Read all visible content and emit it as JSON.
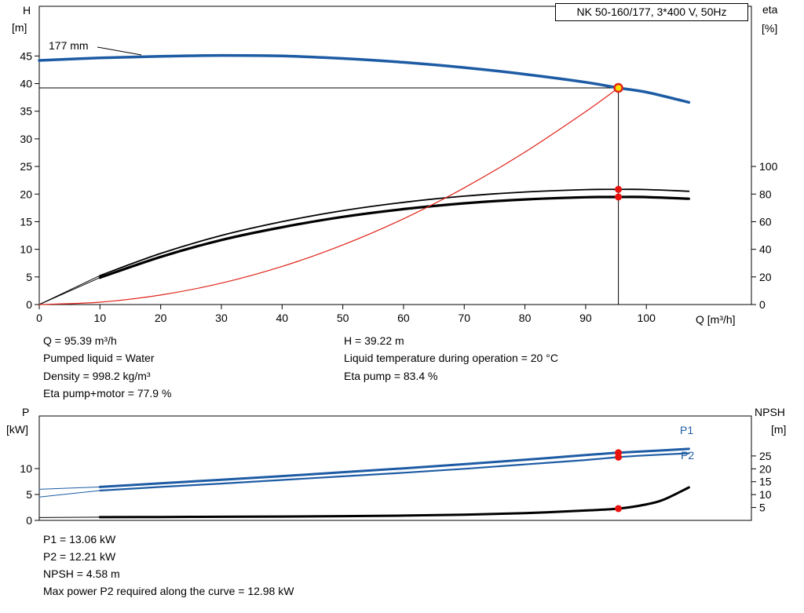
{
  "window": {
    "title_box": "NK 50-160/177, 3*400 V, 50Hz"
  },
  "impeller_label": "177 mm",
  "axis_labels": {
    "h": "H",
    "h_unit": "[m]",
    "eta": "eta",
    "eta_unit": "[%]",
    "q": "Q [m³/h]",
    "p": "P",
    "p_unit": "[kW]",
    "npsh": "NPSH",
    "npsh_unit": "[m]"
  },
  "series_labels": {
    "p1": "P1",
    "p2": "P2"
  },
  "operating_point": {
    "Q_m3h": 95.39,
    "H_m": 39.22,
    "eta_pump_pct": 83.4,
    "eta_pump_motor_pct": 77.9,
    "P1_kW": 13.06,
    "P2_kW": 12.21,
    "NPSH_m": 4.58,
    "max_P2_kW": 12.98
  },
  "info_top": {
    "left": [
      "Q = 95.39 m³/h",
      "Pumped liquid = Water",
      "Density = 998.2 kg/m³",
      "Eta pump+motor = 77.9 %"
    ],
    "right": [
      "H = 39.22 m",
      "Liquid temperature during operation = 20 °C",
      "Eta pump = 83.4 %"
    ]
  },
  "info_bottom": [
    "P1 = 13.06 kW",
    "P2 = 12.21 kW",
    "NPSH = 4.58 m",
    "Max power P2 required along the curve = 12.98 kW"
  ],
  "colors": {
    "curve_blue": "#1d5ba4",
    "curve_red": "#e02318",
    "curve_black": "#000000",
    "op_fill": "#ffe100",
    "op_stroke": "#e02318",
    "dot_red": "#e8130c"
  },
  "chart_data": [
    {
      "name": "hq-eta-chart",
      "type": "line",
      "title": "NK 50-160/177, 3*400 V, 50Hz",
      "x_axis": {
        "label": "Q [m³/h]",
        "range": [
          0,
          117.3
        ],
        "ticks": [
          0,
          10,
          20,
          30,
          40,
          50,
          60,
          70,
          80,
          90,
          100
        ]
      },
      "y_left": {
        "label": "H [m]",
        "range": [
          0,
          54
        ],
        "ticks": [
          0,
          5,
          10,
          15,
          20,
          25,
          30,
          35,
          40,
          45
        ]
      },
      "y_right": {
        "label": "eta [%]",
        "range": [
          0,
          216
        ],
        "ticks": [
          0,
          20,
          40,
          60,
          80,
          100
        ]
      },
      "crosshair": {
        "x": 95.39,
        "y": 39.22
      },
      "series": [
        {
          "name": "eta-pump-lead",
          "axis": "right",
          "color": "#000000",
          "width": 1,
          "points": [
            [
              0,
              0
            ],
            [
              10,
              21
            ]
          ]
        },
        {
          "name": "eta-pump-motor-lead",
          "axis": "right",
          "color": "#000000",
          "width": 1,
          "points": [
            [
              0,
              0
            ],
            [
              10,
              19.5
            ]
          ]
        },
        {
          "name": "eta-pump",
          "axis": "right",
          "color": "#000000",
          "width": 1.8,
          "points": [
            [
              10,
              21
            ],
            [
              20,
              37
            ],
            [
              30,
              50
            ],
            [
              40,
              60
            ],
            [
              50,
              68
            ],
            [
              60,
              74
            ],
            [
              70,
              78.5
            ],
            [
              80,
              81.5
            ],
            [
              90,
              83.2
            ],
            [
              95.39,
              83.4
            ],
            [
              100,
              83.3
            ],
            [
              107,
              82
            ]
          ]
        },
        {
          "name": "eta-pump-motor",
          "axis": "right",
          "color": "#000000",
          "width": 3.2,
          "points": [
            [
              10,
              19.5
            ],
            [
              20,
              34.5
            ],
            [
              30,
              46.7
            ],
            [
              40,
              56
            ],
            [
              50,
              63.5
            ],
            [
              60,
              69.1
            ],
            [
              70,
              73.3
            ],
            [
              80,
              76.1
            ],
            [
              90,
              77.7
            ],
            [
              95.39,
              77.9
            ],
            [
              100,
              77.8
            ],
            [
              107,
              76.6
            ]
          ]
        },
        {
          "name": "system-curve",
          "axis": "left",
          "color": "#e02318",
          "width": 1.2,
          "points": [
            [
              0,
              0
            ],
            [
              10,
              0.43
            ],
            [
              20,
              1.72
            ],
            [
              30,
              3.88
            ],
            [
              40,
              6.9
            ],
            [
              50,
              10.78
            ],
            [
              60,
              15.52
            ],
            [
              70,
              21.13
            ],
            [
              80,
              27.6
            ],
            [
              90,
              34.93
            ],
            [
              95.39,
              39.22
            ]
          ]
        },
        {
          "name": "head",
          "axis": "left",
          "color": "#1d5ba4",
          "width": 3.5,
          "points": [
            [
              0,
              44.2
            ],
            [
              10,
              44.65
            ],
            [
              20,
              44.95
            ],
            [
              30,
              45.1
            ],
            [
              40,
              45.0
            ],
            [
              50,
              44.55
            ],
            [
              60,
              43.85
            ],
            [
              70,
              42.9
            ],
            [
              80,
              41.7
            ],
            [
              90,
              40.25
            ],
            [
              95.39,
              39.22
            ],
            [
              100,
              38.45
            ],
            [
              107,
              36.6
            ]
          ]
        }
      ],
      "markers": [
        {
          "x": 95.39,
          "y": 83.4,
          "axis": "right",
          "type": "dot"
        },
        {
          "x": 95.39,
          "y": 77.9,
          "axis": "right",
          "type": "dot"
        },
        {
          "x": 95.39,
          "y": 39.22,
          "axis": "left",
          "type": "op"
        }
      ]
    },
    {
      "name": "power-npsh-chart",
      "type": "line",
      "x_axis": {
        "label": "",
        "range": [
          0,
          117.3
        ],
        "ticks": []
      },
      "y_left": {
        "label": "P [kW]",
        "range": [
          0,
          20.15
        ],
        "ticks": [
          0,
          5,
          10
        ]
      },
      "y_right": {
        "label": "NPSH [m]",
        "range": [
          0,
          40.5
        ],
        "ticks": [
          5,
          10,
          15,
          20,
          25
        ]
      },
      "series": [
        {
          "name": "npsh-lead",
          "axis": "right",
          "color": "#000000",
          "width": 1,
          "points": [
            [
              0,
              1.1
            ],
            [
              10,
              1.25
            ]
          ]
        },
        {
          "name": "npsh",
          "axis": "right",
          "color": "#000000",
          "width": 3,
          "points": [
            [
              10,
              1.25
            ],
            [
              20,
              1.3
            ],
            [
              30,
              1.4
            ],
            [
              40,
              1.5
            ],
            [
              50,
              1.65
            ],
            [
              60,
              1.85
            ],
            [
              70,
              2.2
            ],
            [
              80,
              2.8
            ],
            [
              90,
              3.85
            ],
            [
              95.39,
              4.58
            ],
            [
              100,
              6.2
            ],
            [
              103,
              8.2
            ],
            [
              107,
              12.8
            ]
          ]
        },
        {
          "name": "p2-lead",
          "axis": "left",
          "color": "#1d5ba4",
          "width": 1,
          "points": [
            [
              0,
              4.5
            ],
            [
              10,
              5.75
            ]
          ]
        },
        {
          "name": "p2",
          "axis": "left",
          "color": "#1d5ba4",
          "width": 2.2,
          "points": [
            [
              10,
              5.75
            ],
            [
              20,
              6.45
            ],
            [
              30,
              7.1
            ],
            [
              40,
              7.8
            ],
            [
              50,
              8.5
            ],
            [
              60,
              9.2
            ],
            [
              70,
              9.95
            ],
            [
              80,
              10.8
            ],
            [
              90,
              11.65
            ],
            [
              95.39,
              12.21
            ],
            [
              100,
              12.55
            ],
            [
              107,
              12.95
            ]
          ]
        },
        {
          "name": "p1-lead",
          "axis": "left",
          "color": "#1d5ba4",
          "width": 1,
          "points": [
            [
              0,
              6.0
            ],
            [
              10,
              6.45
            ]
          ]
        },
        {
          "name": "p1",
          "axis": "left",
          "color": "#1d5ba4",
          "width": 3,
          "points": [
            [
              10,
              6.45
            ],
            [
              20,
              7.15
            ],
            [
              30,
              7.85
            ],
            [
              40,
              8.55
            ],
            [
              50,
              9.3
            ],
            [
              60,
              10.05
            ],
            [
              70,
              10.85
            ],
            [
              80,
              11.7
            ],
            [
              90,
              12.6
            ],
            [
              95.39,
              13.06
            ],
            [
              100,
              13.35
            ],
            [
              107,
              13.8
            ]
          ]
        }
      ],
      "markers": [
        {
          "x": 95.39,
          "y": 13.06,
          "axis": "left",
          "type": "dot"
        },
        {
          "x": 95.39,
          "y": 12.21,
          "axis": "left",
          "type": "dot"
        },
        {
          "x": 95.39,
          "y": 4.58,
          "axis": "right",
          "type": "dot"
        }
      ]
    }
  ]
}
